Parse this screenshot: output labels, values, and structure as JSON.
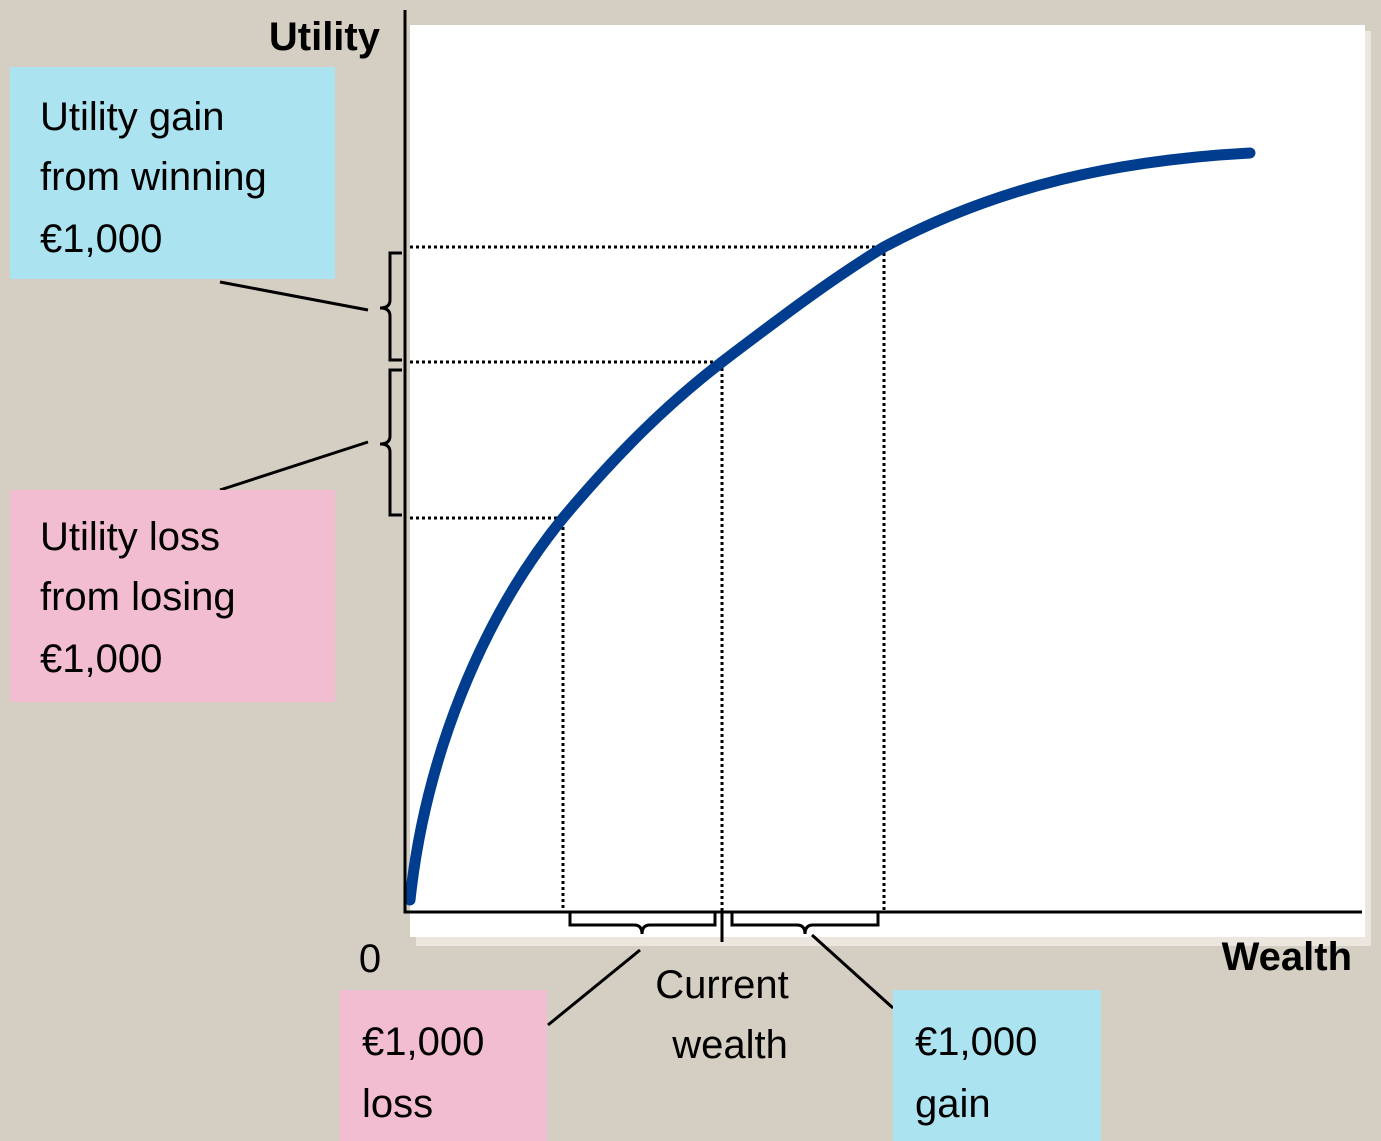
{
  "y_axis_label": "Utility",
  "x_axis_label": "Wealth",
  "origin_label": "0",
  "utility_gain_note": [
    "Utility gain",
    "from winning",
    "€1,000"
  ],
  "utility_loss_note": [
    "Utility loss",
    "from losing",
    "€1,000"
  ],
  "current_wealth_note": [
    "Current",
    "wealth"
  ],
  "loss_note": [
    "€1,000",
    "loss"
  ],
  "gain_note": [
    "€1,000",
    "gain"
  ]
}
